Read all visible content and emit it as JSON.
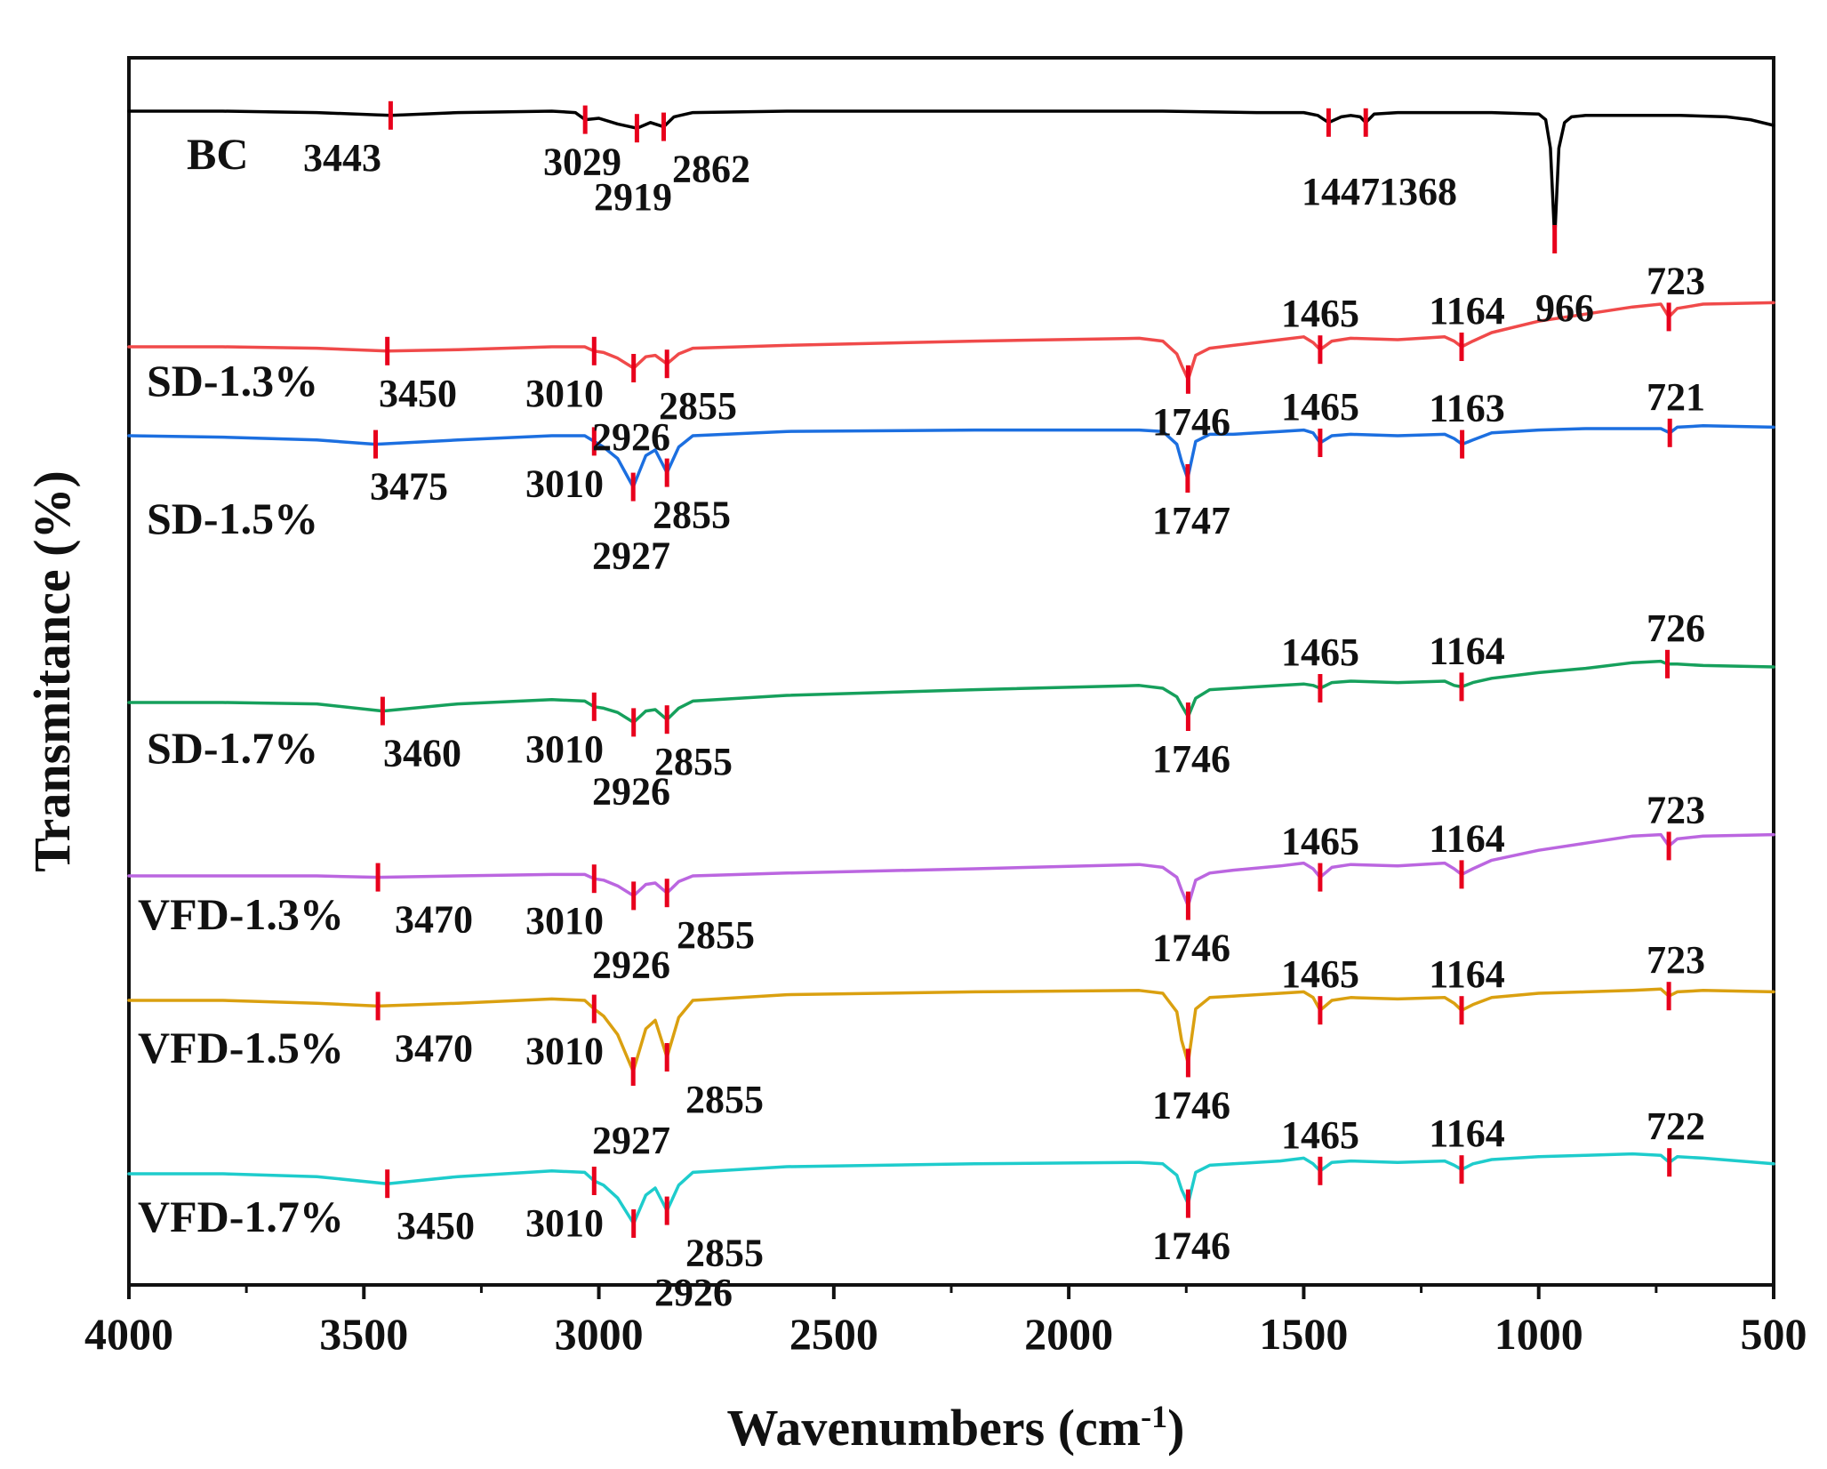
{
  "chart_data": {
    "type": "line",
    "title": "",
    "xlabel": "Wavenumbers (cm⁻¹)",
    "xlabel_main": "Wavenumbers (cm",
    "xlabel_sup": "-1",
    "xlabel_close": ")",
    "ylabel": "Transmitance (%)",
    "xlim": [
      4000,
      500
    ],
    "x_reversed": true,
    "y_ticks_shown": false,
    "x_ticks": [
      4000,
      3500,
      3000,
      2500,
      2000,
      1500,
      1000,
      500
    ],
    "x_tick_labels": [
      "4000",
      "3500",
      "3000",
      "2500",
      "2000",
      "1500",
      "1000",
      "500"
    ],
    "peak_marker_color": "#e8001c",
    "series": [
      {
        "name": "BC",
        "color": "#000000",
        "baseline": 96,
        "x": [
          4000,
          3800,
          3600,
          3443,
          3300,
          3100,
          3050,
          3029,
          3000,
          2960,
          2919,
          2890,
          2862,
          2840,
          2800,
          2600,
          2200,
          1800,
          1600,
          1500,
          1470,
          1447,
          1420,
          1400,
          1380,
          1368,
          1350,
          1300,
          1100,
          1000,
          985,
          975,
          966,
          957,
          945,
          930,
          900,
          800,
          700,
          600,
          550,
          500
        ],
        "y": [
          96,
          96,
          95,
          93,
          95,
          96,
          95,
          90,
          91,
          87,
          84,
          88,
          85,
          92,
          95,
          96,
          96,
          96,
          95,
          95,
          93,
          88,
          92,
          93,
          92,
          88,
          94,
          95,
          95,
          94,
          90,
          70,
          6,
          70,
          88,
          92,
          93,
          93,
          93,
          92,
          90,
          86
        ],
        "peaks": [
          3443,
          3029,
          2919,
          2862,
          1447,
          1368,
          966
        ],
        "peak_labels": [
          "3443",
          "3029",
          "2919",
          "2862",
          "1447",
          "1368",
          "966"
        ]
      },
      {
        "name": "SD-1.3%",
        "color": "#f04a4a",
        "baseline": 43,
        "x": [
          4000,
          3800,
          3600,
          3450,
          3300,
          3100,
          3030,
          3010,
          2990,
          2960,
          2926,
          2900,
          2880,
          2855,
          2830,
          2800,
          2600,
          2200,
          1850,
          1800,
          1770,
          1760,
          1746,
          1730,
          1700,
          1650,
          1550,
          1500,
          1480,
          1465,
          1440,
          1400,
          1300,
          1200,
          1180,
          1164,
          1140,
          1100,
          1000,
          900,
          800,
          740,
          723,
          705,
          650,
          500
        ],
        "y": [
          43,
          43,
          42,
          40,
          41,
          43,
          43,
          40,
          39,
          35,
          28,
          36,
          37,
          31,
          38,
          42,
          44,
          47,
          49,
          47,
          38,
          30,
          20,
          37,
          42,
          44,
          48,
          50,
          46,
          41,
          47,
          49,
          48,
          50,
          47,
          43,
          47,
          53,
          61,
          66,
          71,
          73,
          64,
          70,
          73,
          74
        ],
        "peaks": [
          3450,
          3010,
          2926,
          2855,
          1746,
          1465,
          1164,
          723
        ],
        "peak_labels": [
          "3450",
          "3010",
          "2926",
          "2855",
          "1746",
          "1465",
          "1164",
          "723"
        ]
      },
      {
        "name": "SD-1.5%",
        "color": "#1c6fe0",
        "baseline": 96,
        "x": [
          4000,
          3800,
          3600,
          3475,
          3300,
          3100,
          3030,
          3010,
          2990,
          2960,
          2927,
          2900,
          2880,
          2855,
          2830,
          2800,
          2600,
          2200,
          1850,
          1800,
          1770,
          1760,
          1747,
          1730,
          1700,
          1650,
          1550,
          1500,
          1480,
          1465,
          1440,
          1400,
          1300,
          1200,
          1180,
          1163,
          1140,
          1100,
          1000,
          900,
          800,
          740,
          721,
          705,
          650,
          500
        ],
        "y": [
          96,
          95,
          93,
          90,
          93,
          96,
          96,
          92,
          88,
          80,
          60,
          82,
          86,
          70,
          88,
          96,
          99,
          100,
          100,
          99,
          90,
          78,
          66,
          92,
          97,
          97,
          99,
          100,
          98,
          91,
          96,
          97,
          96,
          97,
          94,
          90,
          93,
          98,
          100,
          101,
          101,
          101,
          98,
          102,
          103,
          102
        ],
        "peaks": [
          3475,
          3010,
          2927,
          2855,
          1747,
          1465,
          1163,
          721
        ],
        "peak_labels": [
          "3475",
          "3010",
          "2927",
          "2855",
          "1747",
          "1465",
          "1163",
          "721"
        ]
      },
      {
        "name": "SD-1.7%",
        "color": "#16a05c",
        "baseline": 43,
        "x": [
          4000,
          3800,
          3600,
          3460,
          3300,
          3100,
          3030,
          3010,
          2990,
          2960,
          2926,
          2900,
          2880,
          2855,
          2830,
          2800,
          2600,
          2200,
          1850,
          1800,
          1770,
          1760,
          1746,
          1730,
          1700,
          1650,
          1550,
          1500,
          1480,
          1465,
          1440,
          1400,
          1300,
          1200,
          1180,
          1164,
          1140,
          1100,
          1000,
          900,
          800,
          740,
          726,
          705,
          650,
          500
        ],
        "y": [
          43,
          43,
          42,
          37,
          42,
          45,
          44,
          40,
          39,
          36,
          29,
          37,
          38,
          31,
          39,
          44,
          48,
          52,
          55,
          53,
          47,
          41,
          33,
          46,
          52,
          53,
          55,
          56,
          55,
          53,
          57,
          58,
          57,
          58,
          55,
          54,
          57,
          60,
          64,
          67,
          71,
          72,
          70,
          70,
          69,
          68
        ],
        "peaks": [
          3460,
          3010,
          2926,
          2855,
          1746,
          1465,
          1164,
          726
        ],
        "peak_labels": [
          "3460",
          "3010",
          "2926",
          "2855",
          "1746",
          "1465",
          "1164",
          "726"
        ]
      },
      {
        "name": "VFD-1.3%",
        "color": "#bb66e0",
        "baseline": 43,
        "x": [
          4000,
          3800,
          3600,
          3470,
          3300,
          3100,
          3030,
          3010,
          2990,
          2960,
          2926,
          2900,
          2880,
          2855,
          2830,
          2800,
          2600,
          2200,
          1850,
          1800,
          1770,
          1760,
          1746,
          1730,
          1700,
          1650,
          1550,
          1500,
          1480,
          1465,
          1440,
          1400,
          1300,
          1200,
          1180,
          1164,
          1140,
          1100,
          1000,
          900,
          800,
          740,
          723,
          705,
          650,
          500
        ],
        "y": [
          43,
          43,
          43,
          42,
          43,
          44,
          44,
          41,
          40,
          36,
          29,
          37,
          38,
          31,
          39,
          43,
          45,
          48,
          51,
          49,
          42,
          33,
          22,
          40,
          45,
          47,
          50,
          52,
          48,
          42,
          49,
          51,
          50,
          52,
          48,
          44,
          48,
          54,
          61,
          66,
          71,
          72,
          64,
          69,
          71,
          72
        ],
        "peaks": [
          3470,
          3010,
          2926,
          2855,
          1746,
          1465,
          1164,
          723
        ],
        "peak_labels": [
          "3470",
          "3010",
          "2926",
          "2855",
          "1746",
          "1465",
          "1164",
          "723"
        ]
      },
      {
        "name": "VFD-1.5%",
        "color": "#daa010",
        "baseline": 96,
        "x": [
          4000,
          3800,
          3600,
          3470,
          3300,
          3100,
          3030,
          3010,
          2990,
          2960,
          2927,
          2900,
          2880,
          2855,
          2830,
          2800,
          2600,
          2200,
          1850,
          1800,
          1770,
          1760,
          1746,
          1730,
          1700,
          1650,
          1550,
          1500,
          1480,
          1465,
          1440,
          1400,
          1300,
          1200,
          1180,
          1164,
          1140,
          1100,
          1000,
          900,
          800,
          740,
          723,
          705,
          650,
          500
        ],
        "y": [
          96,
          96,
          94,
          92,
          94,
          97,
          96,
          90,
          85,
          72,
          46,
          76,
          82,
          56,
          84,
          96,
          100,
          102,
          103,
          101,
          88,
          68,
          52,
          90,
          98,
          99,
          101,
          102,
          98,
          89,
          96,
          98,
          97,
          98,
          94,
          89,
          93,
          98,
          101,
          102,
          103,
          104,
          99,
          102,
          103,
          102
        ],
        "peaks": [
          3470,
          3010,
          2927,
          2855,
          1746,
          1465,
          1164,
          723
        ],
        "peak_labels": [
          "3470",
          "3010",
          "2927",
          "2855",
          "1746",
          "1465",
          "1164",
          "723"
        ]
      },
      {
        "name": "VFD-1.7%",
        "color": "#1ecccc",
        "baseline": 43,
        "x": [
          4000,
          3800,
          3600,
          3450,
          3300,
          3100,
          3030,
          3010,
          2990,
          2960,
          2926,
          2900,
          2880,
          2855,
          2830,
          2800,
          2600,
          2200,
          1850,
          1800,
          1770,
          1760,
          1746,
          1730,
          1700,
          1650,
          1550,
          1500,
          1480,
          1465,
          1440,
          1400,
          1300,
          1200,
          1180,
          1164,
          1140,
          1100,
          1000,
          900,
          800,
          740,
          722,
          705,
          650,
          500
        ],
        "y": [
          43,
          43,
          41,
          36,
          41,
          45,
          44,
          38,
          35,
          26,
          8,
          28,
          33,
          17,
          35,
          44,
          48,
          50,
          51,
          50,
          42,
          32,
          22,
          44,
          49,
          50,
          52,
          54,
          50,
          45,
          51,
          52,
          51,
          52,
          49,
          46,
          50,
          53,
          55,
          56,
          57,
          56,
          51,
          55,
          54,
          50
        ],
        "peaks": [
          3450,
          3010,
          2926,
          2855,
          1746,
          1465,
          1164,
          722
        ],
        "peak_labels": [
          "3450",
          "3010",
          "2926",
          "2855",
          "1746",
          "1465",
          "1164",
          "722"
        ]
      }
    ]
  }
}
